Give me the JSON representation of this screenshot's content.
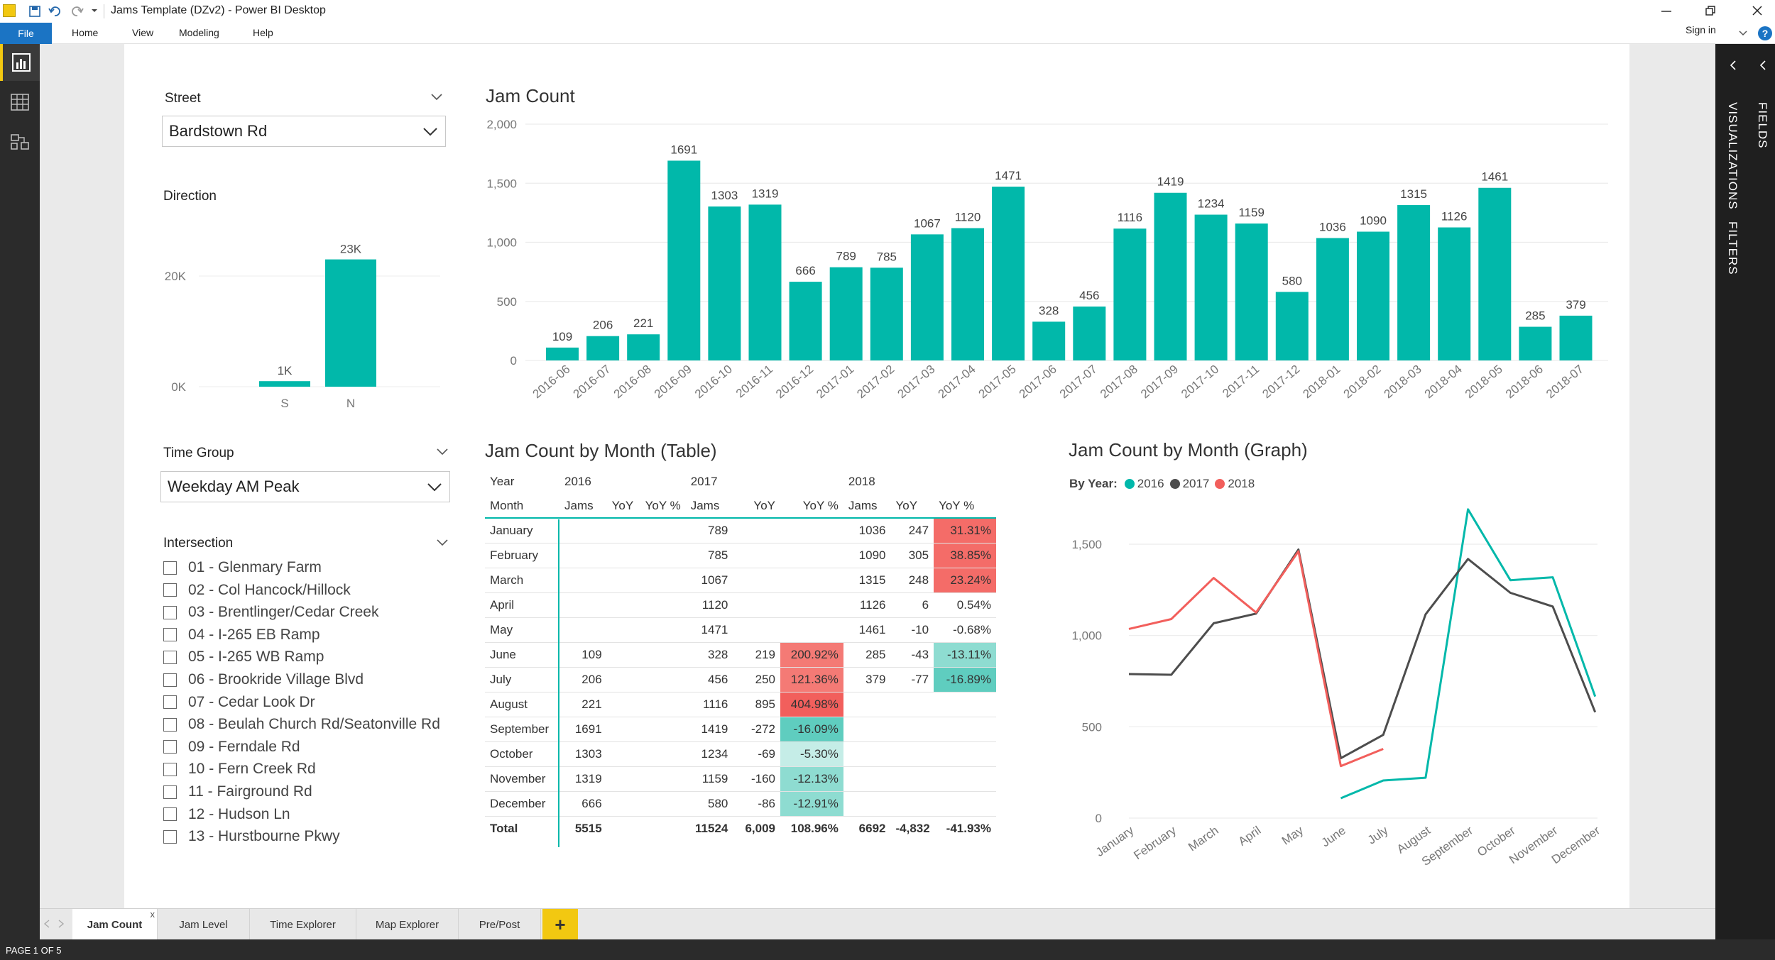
{
  "app": {
    "window_title": "Jams Template (DZv2) - Power BI Desktop",
    "sign_in": "Sign in",
    "ribbon": [
      "File",
      "Home",
      "View",
      "Modeling",
      "Help"
    ]
  },
  "right_pane": {
    "visualizations": "VISUALIZATIONS",
    "filters": "FILTERS",
    "fields": "FIELDS"
  },
  "slicers": {
    "street": {
      "title": "Street",
      "value": "Bardstown Rd"
    },
    "direction": {
      "title": "Direction"
    },
    "time_group": {
      "title": "Time Group",
      "value": "Weekday AM Peak"
    },
    "intersection": {
      "title": "Intersection",
      "items": [
        "01 - Glenmary Farm",
        "02 - Col Hancock/Hillock",
        "03 - Brentlinger/Cedar Creek",
        "04 - I-265 EB Ramp",
        "05 - I-265 WB Ramp",
        "06 - Brookride Village Blvd",
        "07 - Cedar Look Dr",
        "08 - Beulah Church Rd/Seatonville Rd",
        "09 - Ferndale Rd",
        "10 - Fern Creek Rd",
        "11 - Fairground Rd",
        "12 - Hudson Ln",
        "13 - Hurstbourne Pkwy"
      ]
    }
  },
  "visual_titles": {
    "jam_count": "Jam Count",
    "table": "Jam Count by Month (Table)",
    "graph": "Jam Count by Month (Graph)"
  },
  "colors": {
    "teal": "#01b8aa",
    "gray": "#4d4d4d",
    "red": "#f25f5c",
    "accent": "#f2c811",
    "file": "#1b74c4"
  },
  "chart_data": [
    {
      "id": "direction",
      "type": "bar",
      "categories": [
        "S",
        "N"
      ],
      "values": [
        1000,
        23000
      ],
      "data_labels": [
        "1K",
        "23K"
      ],
      "y_ticks": [
        0,
        20000
      ],
      "y_tick_labels": [
        "0K",
        "20K"
      ],
      "ylim": [
        0,
        25000
      ]
    },
    {
      "id": "jam_count",
      "type": "bar",
      "title": "Jam Count",
      "categories": [
        "2016-06",
        "2016-07",
        "2016-08",
        "2016-09",
        "2016-10",
        "2016-11",
        "2016-12",
        "2017-01",
        "2017-02",
        "2017-03",
        "2017-04",
        "2017-05",
        "2017-06",
        "2017-07",
        "2017-08",
        "2017-09",
        "2017-10",
        "2017-11",
        "2017-12",
        "2018-01",
        "2018-02",
        "2018-03",
        "2018-04",
        "2018-05",
        "2018-06",
        "2018-07"
      ],
      "values": [
        109,
        206,
        221,
        1691,
        1303,
        1319,
        666,
        789,
        785,
        1067,
        1120,
        1471,
        328,
        456,
        1116,
        1419,
        1234,
        1159,
        580,
        1036,
        1090,
        1315,
        1126,
        1461,
        285,
        379
      ],
      "y_ticks": [
        0,
        500,
        1000,
        1500,
        2000
      ],
      "y_tick_labels": [
        "0",
        "500",
        "1,000",
        "1,500",
        "2,000"
      ],
      "ylim": [
        0,
        2000
      ],
      "grid": true
    },
    {
      "id": "graph",
      "type": "line",
      "title": "Jam Count by Month (Graph)",
      "legend_title": "By Year:",
      "legend_position": "top-left",
      "categories": [
        "January",
        "February",
        "March",
        "April",
        "May",
        "June",
        "July",
        "August",
        "September",
        "October",
        "November",
        "December"
      ],
      "series": [
        {
          "name": "2016",
          "color": "#01b8aa",
          "values": [
            null,
            null,
            null,
            null,
            null,
            109,
            206,
            221,
            1691,
            1303,
            1319,
            666
          ]
        },
        {
          "name": "2017",
          "color": "#4d4d4d",
          "values": [
            789,
            785,
            1067,
            1120,
            1471,
            328,
            456,
            1116,
            1419,
            1234,
            1159,
            580
          ]
        },
        {
          "name": "2018",
          "color": "#f25f5c",
          "values": [
            1036,
            1090,
            1315,
            1126,
            1461,
            285,
            379,
            null,
            null,
            null,
            null,
            null
          ]
        }
      ],
      "y_ticks": [
        0,
        500,
        1000,
        1500
      ],
      "y_tick_labels": [
        "0",
        "500",
        "1,000",
        "1,500"
      ],
      "ylim": [
        0,
        1750
      ],
      "grid": true
    }
  ],
  "table": {
    "year_label": "Year",
    "month_label": "Month",
    "years": [
      "2016",
      "2017",
      "2018"
    ],
    "subheaders": [
      "Jams",
      "YoY",
      "YoY %"
    ],
    "rows": [
      {
        "month": "January",
        "y2016": [
          "",
          "",
          ""
        ],
        "y2017": [
          "789",
          "",
          ""
        ],
        "y2018": [
          "1036",
          "247",
          "31.31%"
        ]
      },
      {
        "month": "February",
        "y2016": [
          "",
          "",
          ""
        ],
        "y2017": [
          "785",
          "",
          ""
        ],
        "y2018": [
          "1090",
          "305",
          "38.85%"
        ]
      },
      {
        "month": "March",
        "y2016": [
          "",
          "",
          ""
        ],
        "y2017": [
          "1067",
          "",
          ""
        ],
        "y2018": [
          "1315",
          "248",
          "23.24%"
        ]
      },
      {
        "month": "April",
        "y2016": [
          "",
          "",
          ""
        ],
        "y2017": [
          "1120",
          "",
          ""
        ],
        "y2018": [
          "1126",
          "6",
          "0.54%"
        ]
      },
      {
        "month": "May",
        "y2016": [
          "",
          "",
          ""
        ],
        "y2017": [
          "1471",
          "",
          ""
        ],
        "y2018": [
          "1461",
          "-10",
          "-0.68%"
        ]
      },
      {
        "month": "June",
        "y2016": [
          "109",
          "",
          ""
        ],
        "y2017": [
          "328",
          "219",
          "200.92%"
        ],
        "y2018": [
          "285",
          "-43",
          "-13.11%"
        ]
      },
      {
        "month": "July",
        "y2016": [
          "206",
          "",
          ""
        ],
        "y2017": [
          "456",
          "250",
          "121.36%"
        ],
        "y2018": [
          "379",
          "-77",
          "-16.89%"
        ]
      },
      {
        "month": "August",
        "y2016": [
          "221",
          "",
          ""
        ],
        "y2017": [
          "1116",
          "895",
          "404.98%"
        ],
        "y2018": [
          "",
          "",
          ""
        ]
      },
      {
        "month": "September",
        "y2016": [
          "1691",
          "",
          ""
        ],
        "y2017": [
          "1419",
          "-272",
          "-16.09%"
        ],
        "y2018": [
          "",
          "",
          ""
        ]
      },
      {
        "month": "October",
        "y2016": [
          "1303",
          "",
          ""
        ],
        "y2017": [
          "1234",
          "-69",
          "-5.30%"
        ],
        "y2018": [
          "",
          "",
          ""
        ]
      },
      {
        "month": "November",
        "y2016": [
          "1319",
          "",
          ""
        ],
        "y2017": [
          "1159",
          "-160",
          "-12.13%"
        ],
        "y2018": [
          "",
          "",
          ""
        ]
      },
      {
        "month": "December",
        "y2016": [
          "666",
          "",
          ""
        ],
        "y2017": [
          "580",
          "-86",
          "-12.91%"
        ],
        "y2018": [
          "",
          "",
          ""
        ]
      }
    ],
    "total": {
      "label": "Total",
      "y2016": [
        "5515",
        "",
        ""
      ],
      "y2017": [
        "11524",
        "6,009",
        "108.96%"
      ],
      "y2018": [
        "6692",
        "-4,832",
        "-41.93%"
      ]
    }
  },
  "page_tabs": [
    "Jam Count",
    "Jam Level",
    "Time Explorer",
    "Map Explorer",
    "Pre/Post"
  ],
  "close_mark": "x",
  "add_tab": "+",
  "status": "PAGE 1 OF 5"
}
